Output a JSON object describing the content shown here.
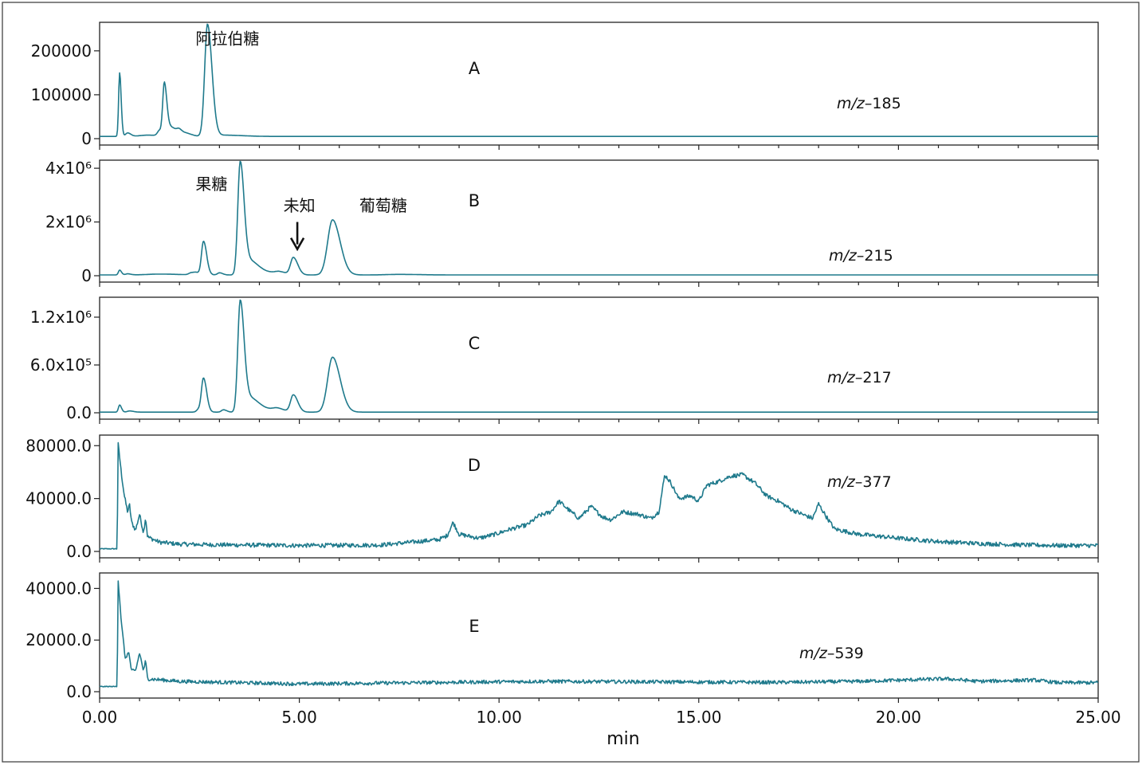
{
  "colors": {
    "trace": "#1f7a8c",
    "axis": "#222222"
  },
  "xaxis": {
    "xlabel": "min",
    "range": [
      0,
      25
    ],
    "ticks": [
      0,
      5,
      10,
      15,
      20,
      25
    ],
    "tick_labels": [
      "0.00",
      "5.00",
      "10.00",
      "15.00",
      "20.00",
      "25.00"
    ]
  },
  "chart_data": [
    {
      "type": "line",
      "panel": "A",
      "mz_prefix": "m/z",
      "mz_value": "–185",
      "ylim": [
        0,
        265000
      ],
      "yticks": [
        0,
        100000,
        200000
      ],
      "ytick_labels": [
        "0",
        "100000",
        "200000"
      ],
      "annotations": [
        {
          "text": "阿拉伯糖",
          "x": 3.2,
          "y": 215000
        }
      ],
      "baseline": 4000,
      "noise": 0,
      "points": [
        [
          0,
          5000
        ],
        [
          0.45,
          5000
        ]
      ],
      "peaks": [
        [
          0.5,
          145000,
          0.025
        ],
        [
          0.7,
          8000,
          0.05
        ],
        [
          1.2,
          3000,
          0.2
        ],
        [
          1.5,
          12000,
          0.05
        ],
        [
          1.62,
          118000,
          0.04
        ],
        [
          1.8,
          20000,
          0.08
        ],
        [
          2.0,
          12000,
          0.06
        ],
        [
          2.2,
          6000,
          0.08
        ],
        [
          2.7,
          255000,
          0.07
        ],
        [
          3.1,
          3000,
          0.3
        ]
      ]
    },
    {
      "type": "line",
      "panel": "B",
      "mz_prefix": "m/z",
      "mz_value": "–215",
      "ylim": [
        0,
        4300000
      ],
      "yticks": [
        0,
        2000000,
        4000000
      ],
      "ytick_labels": [
        "0",
        "2x10⁶",
        "4x10⁶"
      ],
      "annotations": [
        {
          "text": "果糖",
          "x": 2.8,
          "y": 3200000
        },
        {
          "text": "未知",
          "x": 5.0,
          "y": 2400000
        },
        {
          "text": "葡萄糖",
          "x": 7.1,
          "y": 2400000
        }
      ],
      "arrow": {
        "x": 4.95,
        "y_from": 2000000,
        "y_to": 1050000
      },
      "baseline": 20000,
      "noise": 0,
      "points": [
        [
          0,
          30000
        ],
        [
          0.45,
          30000
        ]
      ],
      "peaks": [
        [
          0.5,
          180000,
          0.03
        ],
        [
          0.7,
          40000,
          0.05
        ],
        [
          1.5,
          30000,
          0.3
        ],
        [
          2.3,
          80000,
          0.06
        ],
        [
          2.42,
          60000,
          0.05
        ],
        [
          2.6,
          1250000,
          0.05
        ],
        [
          3.0,
          80000,
          0.05
        ],
        [
          3.52,
          4150000,
          0.06
        ],
        [
          3.75,
          500000,
          0.12
        ],
        [
          4.1,
          120000,
          0.2
        ],
        [
          4.5,
          80000,
          0.1
        ],
        [
          4.85,
          640000,
          0.07
        ],
        [
          5.83,
          2050000,
          0.12
        ],
        [
          7.5,
          20000,
          0.3
        ]
      ]
    },
    {
      "type": "line",
      "panel": "C",
      "mz_prefix": "m/z",
      "mz_value": "–217",
      "ylim": [
        0,
        1450000
      ],
      "yticks": [
        0,
        600000,
        1200000
      ],
      "ytick_labels": [
        "0.0",
        "6.0x10⁵",
        "1.2x10⁶"
      ],
      "annotations": [],
      "baseline": 8000,
      "noise": 0,
      "points": [
        [
          0,
          8000
        ],
        [
          0.45,
          8000
        ]
      ],
      "peaks": [
        [
          0.5,
          90000,
          0.03
        ],
        [
          0.75,
          15000,
          0.06
        ],
        [
          2.48,
          35000,
          0.05
        ],
        [
          2.6,
          420000,
          0.05
        ],
        [
          3.1,
          30000,
          0.05
        ],
        [
          3.52,
          1380000,
          0.06
        ],
        [
          3.75,
          170000,
          0.12
        ],
        [
          4.1,
          45000,
          0.2
        ],
        [
          4.45,
          30000,
          0.1
        ],
        [
          4.85,
          215000,
          0.07
        ],
        [
          5.83,
          690000,
          0.12
        ]
      ]
    },
    {
      "type": "line",
      "panel": "D",
      "mz_prefix": "m/z",
      "mz_value": "–377",
      "ylim": [
        0,
        88000
      ],
      "yticks": [
        0,
        40000,
        80000
      ],
      "ytick_labels": [
        "0.0",
        "40000.0",
        "80000.0"
      ],
      "annotations": [],
      "noise": 1600,
      "points": [
        [
          0,
          2000
        ],
        [
          0.44,
          2000
        ],
        [
          0.46,
          82000
        ],
        [
          0.55,
          58000
        ],
        [
          0.62,
          42000
        ],
        [
          0.7,
          30000
        ],
        [
          0.75,
          35000
        ],
        [
          0.8,
          22000
        ],
        [
          0.9,
          16000
        ],
        [
          1.0,
          28000
        ],
        [
          1.1,
          14000
        ],
        [
          1.15,
          26000
        ],
        [
          1.2,
          11000
        ],
        [
          1.5,
          7000
        ],
        [
          2.0,
          5500
        ],
        [
          3.0,
          5000
        ],
        [
          5.0,
          4500
        ],
        [
          7.0,
          4800
        ],
        [
          7.8,
          7000
        ],
        [
          8.5,
          9000
        ],
        [
          8.7,
          12000
        ],
        [
          8.85,
          22000
        ],
        [
          9.0,
          13000
        ],
        [
          9.5,
          10000
        ],
        [
          9.9,
          13000
        ],
        [
          10.3,
          17000
        ],
        [
          10.7,
          20000
        ],
        [
          11.0,
          27000
        ],
        [
          11.3,
          30000
        ],
        [
          11.5,
          38000
        ],
        [
          11.8,
          30000
        ],
        [
          12.0,
          25000
        ],
        [
          12.3,
          34000
        ],
        [
          12.6,
          26000
        ],
        [
          12.8,
          24000
        ],
        [
          13.1,
          30000
        ],
        [
          13.5,
          28000
        ],
        [
          13.8,
          25000
        ],
        [
          14.0,
          30000
        ],
        [
          14.15,
          58000
        ],
        [
          14.3,
          52000
        ],
        [
          14.5,
          40000
        ],
        [
          14.8,
          42000
        ],
        [
          15.0,
          38000
        ],
        [
          15.2,
          50000
        ],
        [
          15.5,
          53000
        ],
        [
          15.8,
          57000
        ],
        [
          16.1,
          58000
        ],
        [
          16.4,
          52000
        ],
        [
          16.7,
          42000
        ],
        [
          17.0,
          38000
        ],
        [
          17.3,
          32000
        ],
        [
          17.6,
          28000
        ],
        [
          17.85,
          25000
        ],
        [
          18.0,
          36000
        ],
        [
          18.2,
          26000
        ],
        [
          18.4,
          17000
        ],
        [
          19.0,
          13000
        ],
        [
          20.0,
          10000
        ],
        [
          21.0,
          7500
        ],
        [
          22.0,
          6000
        ],
        [
          23.0,
          5000
        ],
        [
          24.0,
          4500
        ],
        [
          25.0,
          4500
        ]
      ],
      "peaks": []
    },
    {
      "type": "line",
      "panel": "E",
      "mz_prefix": "m/z",
      "mz_value": "–539",
      "ylim": [
        0,
        46000
      ],
      "yticks": [
        0,
        20000,
        40000
      ],
      "ytick_labels": [
        "0.0",
        "20000.0",
        "40000.0"
      ],
      "annotations": [],
      "noise": 700,
      "points": [
        [
          0,
          2000
        ],
        [
          0.44,
          2000
        ],
        [
          0.46,
          44000
        ],
        [
          0.55,
          26000
        ],
        [
          0.65,
          12000
        ],
        [
          0.72,
          16000
        ],
        [
          0.8,
          8000
        ],
        [
          0.9,
          8000
        ],
        [
          1.0,
          15000
        ],
        [
          1.1,
          8000
        ],
        [
          1.15,
          12000
        ],
        [
          1.2,
          5000
        ],
        [
          2.0,
          4000
        ],
        [
          5.0,
          3000
        ],
        [
          8.0,
          3500
        ],
        [
          11.0,
          4000
        ],
        [
          14.0,
          3800
        ],
        [
          17.0,
          3600
        ],
        [
          19.0,
          4000
        ],
        [
          21.2,
          5000
        ],
        [
          22.0,
          4000
        ],
        [
          23.4,
          4500
        ],
        [
          24.0,
          3500
        ],
        [
          25.0,
          3500
        ]
      ],
      "peaks": []
    }
  ]
}
